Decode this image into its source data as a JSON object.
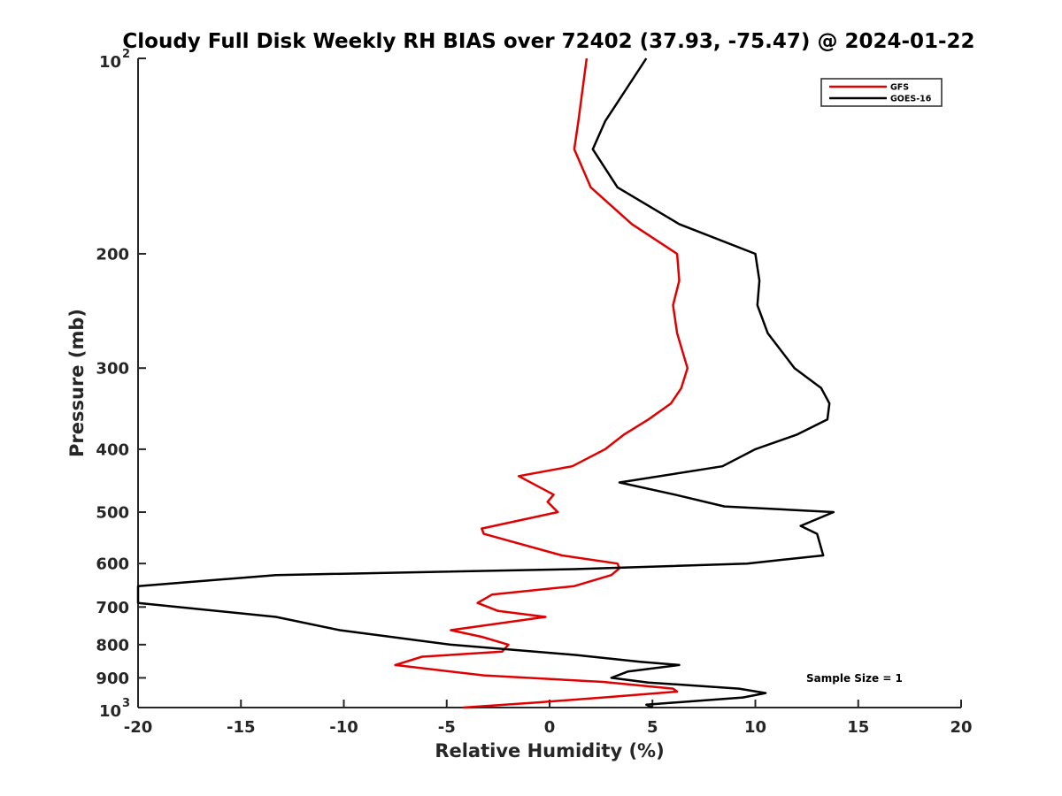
{
  "chart_data": {
    "type": "line",
    "title": "Cloudy Full Disk Weekly RH BIAS over 72402 (37.93, -75.47) @ 2024-01-22",
    "xlabel": "Relative Humidity (%)",
    "ylabel": "Pressure (mb)",
    "xlim": [
      -20,
      20
    ],
    "ylim": [
      100,
      1000
    ],
    "y_scale": "log",
    "y_reversed": true,
    "grid": false,
    "legend_position": "top-right",
    "x_ticks": [
      {
        "value": -20,
        "label": "-20"
      },
      {
        "value": -15,
        "label": "-15"
      },
      {
        "value": -10,
        "label": "-10"
      },
      {
        "value": -5,
        "label": "-5"
      },
      {
        "value": 0,
        "label": "0"
      },
      {
        "value": 5,
        "label": "5"
      },
      {
        "value": 10,
        "label": "10"
      },
      {
        "value": 15,
        "label": "15"
      },
      {
        "value": 20,
        "label": "20"
      }
    ],
    "y_ticks": [
      {
        "value": 100,
        "base": "10",
        "exp": "2"
      },
      {
        "value": 200,
        "label": "200"
      },
      {
        "value": 300,
        "label": "300"
      },
      {
        "value": 400,
        "label": "400"
      },
      {
        "value": 500,
        "label": "500"
      },
      {
        "value": 600,
        "label": "600"
      },
      {
        "value": 700,
        "label": "700"
      },
      {
        "value": 800,
        "label": "800"
      },
      {
        "value": 900,
        "label": "900"
      },
      {
        "value": 1000,
        "base": "10",
        "exp": "3"
      }
    ],
    "annotation": "Sample Size = 1",
    "series": [
      {
        "name": "GFS",
        "color": "#e00000",
        "points": [
          [
            1.8,
            100
          ],
          [
            1.4,
            125
          ],
          [
            1.2,
            138
          ],
          [
            2.0,
            158
          ],
          [
            4.0,
            180
          ],
          [
            6.2,
            200
          ],
          [
            6.3,
            220
          ],
          [
            6.0,
            240
          ],
          [
            6.2,
            265
          ],
          [
            6.7,
            300
          ],
          [
            6.4,
            322
          ],
          [
            5.9,
            340
          ],
          [
            4.8,
            360
          ],
          [
            3.6,
            380
          ],
          [
            2.7,
            400
          ],
          [
            1.1,
            425
          ],
          [
            -1.5,
            440
          ],
          [
            0.2,
            470
          ],
          [
            -0.1,
            482
          ],
          [
            0.4,
            500
          ],
          [
            -3.3,
            530
          ],
          [
            -3.2,
            540
          ],
          [
            0.6,
            583
          ],
          [
            3.3,
            600
          ],
          [
            3.4,
            610
          ],
          [
            3.0,
            625
          ],
          [
            1.2,
            650
          ],
          [
            -2.8,
            670
          ],
          [
            -3.5,
            690
          ],
          [
            -2.5,
            710
          ],
          [
            -0.2,
            725
          ],
          [
            -4.8,
            760
          ],
          [
            -3.3,
            778
          ],
          [
            -2.0,
            800
          ],
          [
            -2.3,
            820
          ],
          [
            -6.2,
            835
          ],
          [
            -7.5,
            860
          ],
          [
            -3.2,
            892
          ],
          [
            2.6,
            913
          ],
          [
            6.0,
            935
          ],
          [
            6.2,
            945
          ],
          [
            2.6,
            965
          ],
          [
            -0.6,
            982
          ],
          [
            -4.2,
            1000
          ]
        ]
      },
      {
        "name": "GOES-16",
        "color": "#000000",
        "points": [
          [
            4.7,
            100
          ],
          [
            2.7,
            125
          ],
          [
            2.1,
            138
          ],
          [
            3.3,
            158
          ],
          [
            6.3,
            180
          ],
          [
            10.0,
            200
          ],
          [
            10.2,
            220
          ],
          [
            10.1,
            240
          ],
          [
            10.6,
            265
          ],
          [
            11.9,
            300
          ],
          [
            13.2,
            322
          ],
          [
            13.6,
            340
          ],
          [
            13.5,
            360
          ],
          [
            12.0,
            380
          ],
          [
            10.0,
            400
          ],
          [
            8.4,
            425
          ],
          [
            3.4,
            450
          ],
          [
            6.1,
            470
          ],
          [
            8.5,
            490
          ],
          [
            13.8,
            500
          ],
          [
            12.2,
            525
          ],
          [
            13.0,
            540
          ],
          [
            13.3,
            583
          ],
          [
            9.6,
            600
          ],
          [
            1.2,
            612
          ],
          [
            -13.3,
            625
          ],
          [
            -20,
            650
          ],
          [
            -20,
            690
          ],
          [
            -13.3,
            725
          ],
          [
            -10.2,
            760
          ],
          [
            -4.8,
            800
          ],
          [
            1.3,
            830
          ],
          [
            4.4,
            850
          ],
          [
            6.3,
            860
          ],
          [
            3.8,
            880
          ],
          [
            3.0,
            900
          ],
          [
            4.8,
            915
          ],
          [
            9.2,
            935
          ],
          [
            10.5,
            950
          ],
          [
            9.4,
            965
          ],
          [
            6.5,
            980
          ],
          [
            4.7,
            990
          ],
          [
            5.0,
            1000
          ]
        ]
      }
    ]
  }
}
